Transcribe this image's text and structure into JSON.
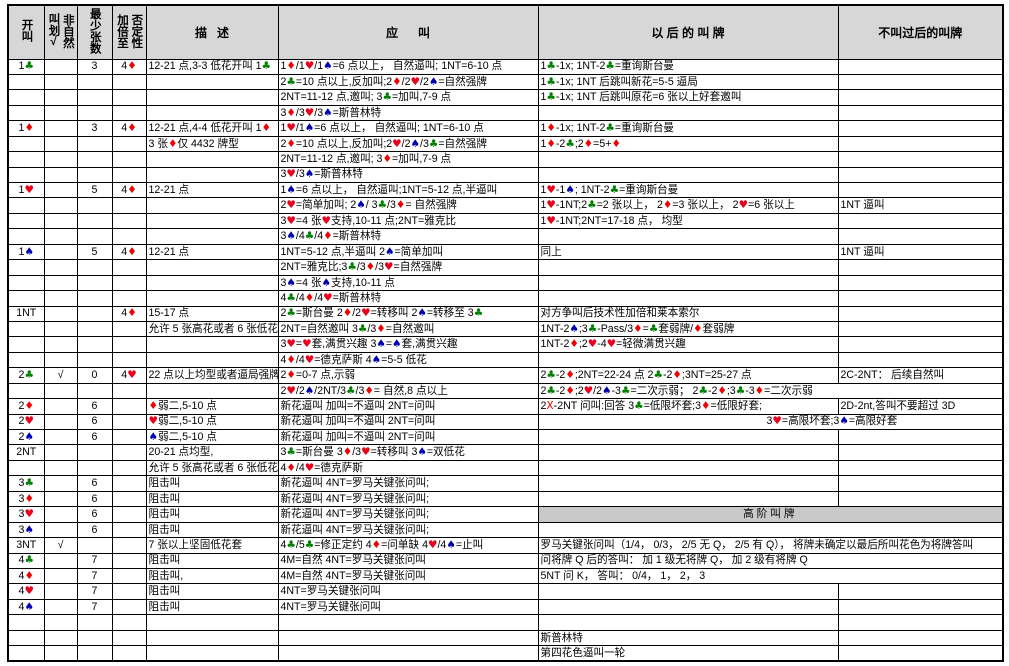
{
  "suit_colors": {
    "club": "#008000",
    "diamond": "#f00000",
    "heart": "#e8001c",
    "spade": "#0000b0"
  },
  "table": {
    "headers": [
      {
        "label": "开叫",
        "vertical": true
      },
      {
        "label": "非自然\n叫划√",
        "vertical": true
      },
      {
        "label": "最少张数",
        "vertical": true
      },
      {
        "label": "否定性\n加倍至",
        "vertical": true
      },
      {
        "label": "描   述"
      },
      {
        "label": "应      叫"
      },
      {
        "label": "以 后 的 叫 牌"
      },
      {
        "label": "不叫过后的叫牌"
      }
    ],
    "rows": [
      [
        "1{c}",
        "",
        "3",
        "4{d}",
        "12-21 点,3-3 低花开叫 1{c}",
        "1{d}/1{h}/1{s}=6 点以上， 自然逼叫; 1NT=6-10 点",
        "1{c}-1x; 1NT-2{c}=重询斯台曼",
        ""
      ],
      [
        "",
        "",
        "",
        "",
        "",
        "2{c}=10 点以上,反加叫;2{d}/2{h}/2{s}=自然强牌",
        "1{c}-1x; 1NT 后跳叫新花=5-5 逼局",
        ""
      ],
      [
        "",
        "",
        "",
        "",
        "",
        "2NT=11-12 点,邀叫; 3{c}=加叫,7-9 点",
        "1{c}-1x; 1NT 后跳叫原花=6 张以上好套邀叫",
        ""
      ],
      [
        "",
        "",
        "",
        "",
        "",
        "3{d}/3{h}/3{s}=斯普林特",
        "",
        ""
      ],
      [
        "1{d}",
        "",
        "3",
        "4{d}",
        "12-21 点,4-4 低花开叫 1{d}",
        "1{h}/1{s}=6 点以上， 自然逼叫; 1NT=6-10 点",
        "1{d}-1x; 1NT-2{c}=重询斯台曼",
        ""
      ],
      [
        "",
        "",
        "",
        "",
        "3 张{d}仅 4432 牌型",
        "2{d}=10 点以上,反加叫;2{h}/2{s}/3{c}=自然强牌",
        "1{d}-2{c};2{d}=5+{d}",
        ""
      ],
      [
        "",
        "",
        "",
        "",
        "",
        "2NT=11-12 点,邀叫; 3{d}=加叫,7-9 点",
        "",
        ""
      ],
      [
        "",
        "",
        "",
        "",
        "",
        "3{h}/3{s}=斯普林特",
        "",
        ""
      ],
      [
        "1{h}",
        "",
        "5",
        "4{d}",
        "12-21 点",
        "1{s}=6 点以上， 自然逼叫;1NT=5-12 点,半逼叫",
        "1{h}-1{s}; 1NT-2{c}=重询斯台曼",
        ""
      ],
      [
        "",
        "",
        "",
        "",
        "",
        "2{h}=简单加叫; 2{s}/ 3{c}/3{d}= 自然强牌",
        "1{h}-1NT;2{c}=2 张以上， 2{d}=3 张以上， 2{h}=6 张以上",
        "1NT 逼叫"
      ],
      [
        "",
        "",
        "",
        "",
        "",
        "3{h}=4 张{h}支持,10-11 点;2NT=雅克比",
        " 1{h}-1NT;2NT=17-18 点， 均型",
        ""
      ],
      [
        "",
        "",
        "",
        "",
        "",
        "3{s}/4{c}/4{d}=斯普林特",
        "",
        ""
      ],
      [
        "1{s}",
        "",
        "5",
        "4{d}",
        "12-21 点",
        "1NT=5-12 点,半逼叫 2{s}=简单加叫",
        "同上",
        "1NT 逼叫"
      ],
      [
        "",
        "",
        "",
        "",
        "",
        "2NT=雅克比;3{c}/3{d}/3{h}=自然强牌",
        "",
        ""
      ],
      [
        "",
        "",
        "",
        "",
        "",
        "3{s}=4 张{s}支持,10-11 点",
        "",
        ""
      ],
      [
        "",
        "",
        "",
        "",
        "",
        "4{c}/4{d}/4{h}=斯普林特",
        "",
        ""
      ],
      [
        "1NT",
        "",
        "",
        "4{d}",
        "15-17 点",
        "2{c}=斯台曼 2{d}/2{h}=转移叫 2{s}=转移至 3{c}",
        "对方争叫后技术性加倍和莱本索尔",
        ""
      ],
      [
        "",
        "",
        "",
        "",
        "允许 5 张高花或者 6 张低花",
        "2NT=自然邀叫 3{c}/3{d}=自然邀叫",
        "1NT-2{s};3{c}-Pass/3{d}={c}套弱牌/{d}套弱牌",
        ""
      ],
      [
        "",
        "",
        "",
        "",
        "",
        "3{h}={h}套,满贯兴趣 3{s}={s}套,满贯兴趣",
        "1NT-2{d};2{h}-4{h}=轻微满贯兴趣",
        ""
      ],
      [
        "",
        "",
        "",
        "",
        "",
        "4{d}/4{h}=德克萨斯 4{s}=5-5 低花",
        "",
        ""
      ],
      [
        "2{c}",
        "√",
        "0",
        "4{h}",
        "22 点以上均型或者逼局强牌",
        "2{d}=0-7 点,示弱",
        "2{c}-2{d};2NT=22-24 点 2{c}-2{d};3NT=25-27 点",
        "2C-2NT： 后续自然叫"
      ],
      [
        "",
        "",
        "",
        "",
        "",
        "2{h}/2{s}/2NT/3{c}/3{d}= 自然,8 点以上",
        {
          "text": "2{c}-2{d};2{h}/2{s}-3{c}=二次示弱； 2{c}-2{d};3{c}-3{d}=二次示弱",
          "span": 2
        }
      ],
      [
        "2{d}",
        "",
        "6",
        "",
        "{d}弱二,5-10 点",
        "新花逼叫 加叫=不逼叫 2NT=问叫",
        "2{X}-2NT 问叫:回答 3{c}=低限坏套;3{d}=低限好套;",
        "2D-2nt,答叫不要超过 3D"
      ],
      [
        "2{h}",
        "",
        "6",
        "",
        "{h}弱二,5-10 点",
        "新花逼叫 加叫=不逼叫 2NT=问叫",
        {
          "text": "3{h}=高限坏套;3{s}=高限好套",
          "span": 2,
          "indent": true
        }
      ],
      [
        "2{s}",
        "",
        "6",
        "",
        "{s}弱二,5-10 点",
        "新花逼叫 加叫=不逼叫 2NT=问叫",
        "",
        ""
      ],
      [
        "2NT",
        "",
        "",
        "",
        "20-21 点均型,",
        "3{c}=斯台曼 3{d}/3{h}=转移叫 3{s}=双低花",
        "",
        ""
      ],
      [
        "",
        "",
        "",
        "",
        "允许 5 张高花或者 6 张低花",
        "4{d}/4{h}=德克萨斯",
        "",
        ""
      ],
      [
        "3{c}",
        "",
        "6",
        "",
        "阻击叫",
        "新花逼叫 4NT=罗马关键张问叫;",
        "",
        ""
      ],
      [
        "3{d}",
        "",
        "6",
        "",
        "阻击叫",
        "新花逼叫 4NT=罗马关键张问叫;",
        "",
        ""
      ],
      [
        "3{h}",
        "",
        "6",
        "",
        "阻击叫",
        "新花逼叫 4NT=罗马关键张问叫;",
        {
          "text": "高阶叫牌",
          "span": 2,
          "banner": true
        }
      ],
      [
        "3{s}",
        "",
        "6",
        "",
        "阻击叫",
        "新花逼叫 4NT=罗马关键张问叫;",
        {
          "text": "",
          "span": 2
        }
      ],
      [
        "3NT",
        "√",
        "",
        "",
        "7 张以上坚固低花套",
        "4{c}/5{c}=修正定约 4{d}=问单缺 4{h}/4{s}=止叫",
        {
          "text": "罗马关键张问叫（1/4， 0/3， 2/5 无 Q， 2/5 有 Q）， 将牌未确定以最后所叫花色为将牌答叫",
          "span": 2
        }
      ],
      [
        "4{c}",
        "",
        "7",
        "",
        "阻击叫",
        "4M=自然 4NT=罗马关键张问叫",
        {
          "text": "问将牌 Q 后的答叫： 加 1 级无将牌 Q， 加 2 级有将牌 Q",
          "span": 2
        }
      ],
      [
        "4{d}",
        "",
        "7",
        "",
        "阻击叫,",
        "4M=自然 4NT=罗马关键张问叫",
        {
          "text": "5NT 问 K， 答叫： 0/4， 1， 2， 3",
          "span": 2
        }
      ],
      [
        "4{h}",
        "",
        "7",
        "",
        "阻击叫",
        "4NT=罗马关键张问叫",
        "",
        ""
      ],
      [
        "4{s}",
        "",
        "7",
        "",
        "阻击叫",
        "4NT=罗马关键张问叫",
        "",
        ""
      ],
      [
        "",
        "",
        "",
        "",
        "",
        "",
        "",
        ""
      ],
      [
        "",
        "",
        "",
        "",
        "",
        "",
        "斯普林特",
        ""
      ],
      [
        "",
        "",
        "",
        "",
        "",
        "",
        "第四花色逼叫一轮",
        ""
      ]
    ]
  }
}
